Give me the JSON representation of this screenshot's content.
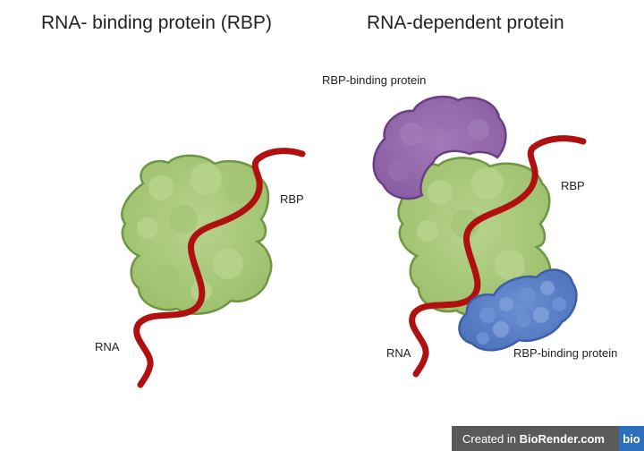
{
  "titles": {
    "left": "RNA- binding protein (RBP)",
    "right": "RNA-dependent protein"
  },
  "labels": {
    "rbp_left": "RBP",
    "rna_left": "RNA",
    "rbp_binding_top": "RBP-binding protein",
    "rbp_right": "RBP",
    "rna_right": "RNA",
    "rbp_binding_bottom": "RBP-binding protein"
  },
  "badge": {
    "prefix": "Created in ",
    "brand": "BioRender.com",
    "logo": "bio"
  },
  "colors": {
    "rbp_fill": "#a9c97d",
    "rbp_stroke": "#6f9642",
    "rna": "#b01010",
    "purple_protein": "#8f63a6",
    "blue_protein": "#5a7fc6"
  }
}
